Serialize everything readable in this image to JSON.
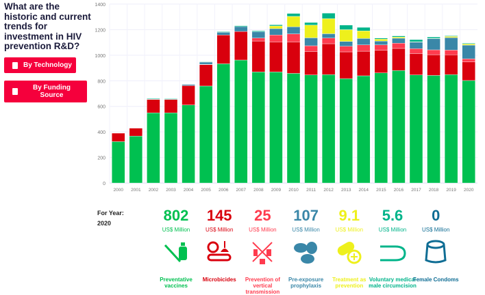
{
  "title": "What are the historic and current trends for investment in HIV prevention R&D?",
  "buttons": {
    "by_technology": "By Technology",
    "by_funding_source": "By Funding Source"
  },
  "for_year": {
    "label": "For Year:",
    "year": "2020"
  },
  "stats": [
    {
      "value": "802",
      "unit": "US$ Million",
      "label": "Preventative vaccines",
      "color": "#00c050",
      "icon": "syringe-vial-icon"
    },
    {
      "value": "145",
      "unit": "US$ Million",
      "label": "Microbicides",
      "color": "#d9000d",
      "icon": "microbicide-applicator-icon"
    },
    {
      "value": "25",
      "unit": "US$ Million",
      "label": "Prevention of vertical transmission",
      "color": "#ff3b4e",
      "icon": "vertical-transmission-icon"
    },
    {
      "value": "107",
      "unit": "US$ Million",
      "label": "Pre-exposure prophylaxis",
      "color": "#3a87a8",
      "icon": "pills-icon"
    },
    {
      "value": "9.1",
      "unit": "US$ Million",
      "label": "Treatment as prevention",
      "color": "#eef01c",
      "icon": "pill-plus-icon"
    },
    {
      "value": "5.6",
      "unit": "US$ Million",
      "label": "Voluntary medical male circumcision",
      "color": "#00b48a",
      "icon": "circumcision-icon"
    },
    {
      "value": "0",
      "unit": "US$ Million",
      "label": "Female Condoms",
      "color": "#0f6d94",
      "icon": "female-condom-icon"
    }
  ],
  "chart_data": {
    "type": "bar",
    "stacked": true,
    "grid": true,
    "ylim": [
      0,
      1400
    ],
    "yticks": [
      "0",
      "200",
      "400",
      "600",
      "800",
      "1000",
      "1200",
      "1400"
    ],
    "categories": [
      "2000",
      "2001",
      "2002",
      "2003",
      "2004",
      "2005",
      "2006",
      "2007",
      "2008",
      "2009",
      "2010",
      "2011",
      "2012",
      "2013",
      "2014",
      "2015",
      "2016",
      "2017",
      "2018",
      "2019",
      "2020"
    ],
    "series": [
      {
        "name": "Preventative vaccines",
        "color": "#00c050",
        "values": [
          324,
          367,
          549,
          549,
          611,
          759,
          933,
          962,
          869,
          869,
          858,
          846,
          848,
          817,
          839,
          862,
          880,
          846,
          842,
          848,
          802
        ]
      },
      {
        "name": "Microbicides",
        "color": "#d9000d",
        "values": [
          66,
          62,
          105,
          104,
          151,
          167,
          225,
          224,
          242,
          235,
          246,
          183,
          242,
          209,
          192,
          176,
          173,
          167,
          162,
          155,
          145
        ]
      },
      {
        "name": "Prevention of vertical transmission",
        "color": "#ff3b4e",
        "values": [
          0,
          0,
          0,
          0,
          0,
          3,
          0,
          0,
          23,
          54,
          63,
          45,
          44,
          44,
          50,
          43,
          41,
          38,
          38,
          37,
          25
        ]
      },
      {
        "name": "Pre-exposure prophylaxis",
        "color": "#3a87a8",
        "values": [
          0,
          0,
          2,
          2,
          9,
          17,
          21,
          38,
          50,
          50,
          55,
          62,
          34,
          38,
          50,
          30,
          39,
          51,
          87,
          98,
          107
        ]
      },
      {
        "name": "Treatment as prevention",
        "color": "#eef01c",
        "values": [
          0,
          0,
          0,
          0,
          0,
          0,
          0,
          0,
          0,
          21,
          82,
          100,
          118,
          92,
          59,
          15,
          9,
          3,
          2,
          9,
          9.1
        ]
      },
      {
        "name": "Voluntary medical male circumcision",
        "color": "#00b48a",
        "values": [
          0,
          0,
          5,
          5,
          0,
          3,
          5,
          7,
          7,
          9,
          23,
          20,
          43,
          36,
          28,
          8,
          9,
          17,
          11,
          5,
          5.6
        ]
      },
      {
        "name": "Female Condoms",
        "color": "#0f6d94",
        "values": [
          0,
          0,
          0,
          0,
          0,
          0,
          0,
          0,
          0,
          0,
          0,
          0,
          0,
          0,
          0,
          0,
          0,
          0,
          0,
          0,
          0
        ]
      }
    ]
  }
}
